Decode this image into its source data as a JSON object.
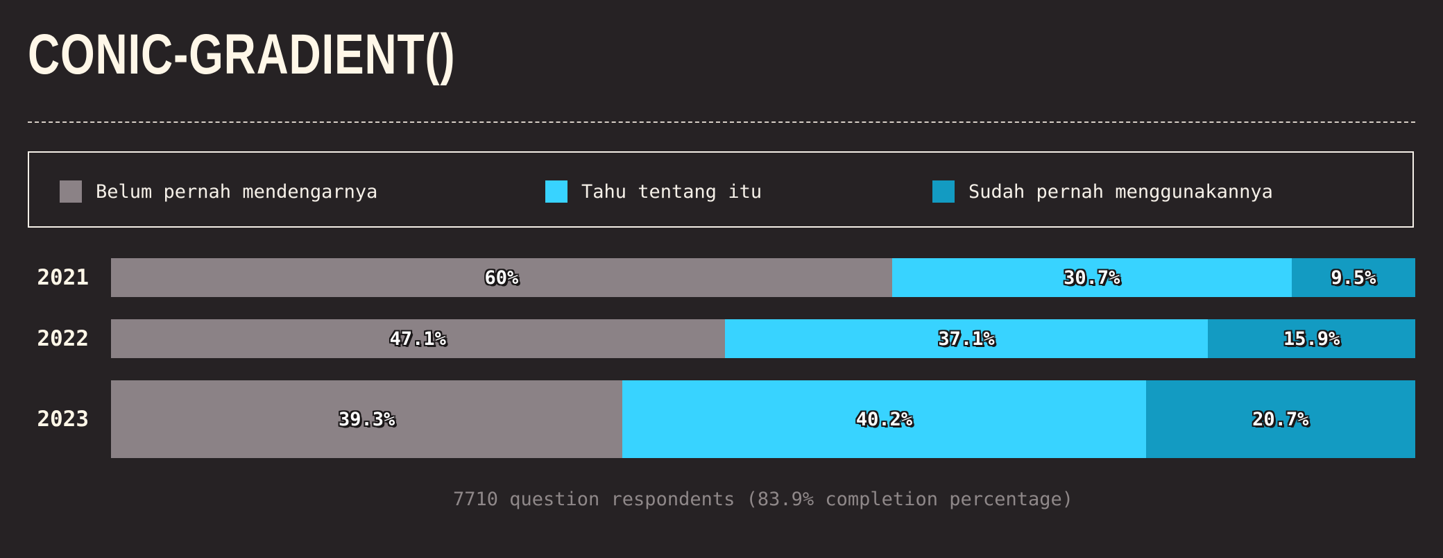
{
  "title": "CONIC-GRADIENT()",
  "legend": [
    {
      "label": "Belum pernah mendengarnya",
      "color": "#8b8286"
    },
    {
      "label": "Tahu tentang itu",
      "color": "#38d3ff"
    },
    {
      "label": "Sudah pernah menggunakannya",
      "color": "#139bc2"
    }
  ],
  "footer": "7710 question respondents (83.9% completion percentage)",
  "chart_data": {
    "type": "bar",
    "orientation": "horizontal",
    "stacked": true,
    "categories": [
      "2021",
      "2022",
      "2023"
    ],
    "series": [
      {
        "name": "Belum pernah mendengarnya",
        "values": [
          60,
          47.1,
          39.3
        ],
        "labels": [
          "60%",
          "47.1%",
          "39.3%"
        ],
        "color": "#8b8286"
      },
      {
        "name": "Tahu tentang itu",
        "values": [
          30.7,
          37.1,
          40.2
        ],
        "labels": [
          "30.7%",
          "37.1%",
          "40.2%"
        ],
        "color": "#38d3ff"
      },
      {
        "name": "Sudah pernah menggunakannya",
        "values": [
          9.5,
          15.9,
          20.7
        ],
        "labels": [
          "9.5%",
          "15.9%",
          "20.7%"
        ],
        "color": "#139bc2"
      }
    ],
    "xlim": [
      0,
      100
    ],
    "grid": false,
    "legend_position": "top"
  }
}
